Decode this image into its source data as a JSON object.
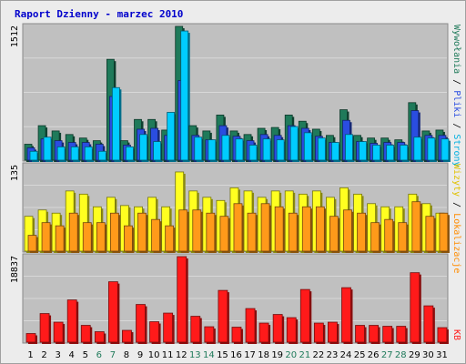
{
  "title": "Raport Dzienny -  marzec 2010",
  "colors": {
    "background": "#ececec",
    "panel": "#c0c0c0",
    "grid": "#d8d8d8",
    "hits": "#1f7a5a",
    "files": "#2a4de0",
    "pages": "#00ccff",
    "visits": "#ffff20",
    "sites": "#ff9a1a",
    "kbytes": "#ff1a1a",
    "day_normal": "#000000",
    "day_weekend": "#1f7a5a"
  },
  "right_labels": {
    "top": [
      {
        "text": "Wywołania",
        "color": "#1f7a5a"
      },
      {
        "text": " / ",
        "color": "#000000"
      },
      {
        "text": "Pliki",
        "color": "#2a4de0"
      },
      {
        "text": " / ",
        "color": "#000000"
      },
      {
        "text": "Strony",
        "color": "#00b0e0"
      }
    ],
    "middle": [
      {
        "text": "Wizyty",
        "color": "#e0c000"
      },
      {
        "text": " / ",
        "color": "#000000"
      },
      {
        "text": "Lokalizacje",
        "color": "#ff8c00"
      }
    ],
    "bottom": [
      {
        "text": "KB",
        "color": "#ff1a1a"
      }
    ]
  },
  "chart_data": {
    "type": "bar",
    "categories": [
      "1",
      "2",
      "3",
      "4",
      "5",
      "6",
      "7",
      "8",
      "9",
      "10",
      "11",
      "12",
      "13",
      "14",
      "15",
      "16",
      "17",
      "18",
      "19",
      "20",
      "21",
      "22",
      "23",
      "24",
      "25",
      "26",
      "27",
      "28",
      "29",
      "30",
      "31"
    ],
    "weekend_days": [
      "6",
      "7",
      "13",
      "14",
      "20",
      "21",
      "27",
      "28"
    ],
    "panels": [
      {
        "name": "hits-files-pages",
        "ymax_label": "1512",
        "ylim": [
          0,
          1512
        ],
        "series": [
          {
            "name": "Wywołania",
            "color_key": "hits",
            "values": [
              180,
              390,
              330,
              290,
              250,
              220,
              1140,
              220,
              460,
              460,
              340,
              1512,
              390,
              330,
              510,
              330,
              290,
              360,
              370,
              510,
              440,
              350,
              280,
              570,
              280,
              250,
              250,
              230,
              650,
              330,
              340
            ]
          },
          {
            "name": "Pliki",
            "color_key": "files",
            "values": [
              140,
              240,
              220,
              200,
              200,
              180,
              720,
              170,
              350,
              360,
              280,
              900,
              280,
              230,
              390,
              270,
              220,
              290,
              280,
              390,
              360,
              270,
              200,
              450,
              210,
              190,
              200,
              200,
              560,
              280,
              280
            ]
          },
          {
            "name": "Strony",
            "color_key": "pages",
            "values": [
              100,
              260,
              150,
              150,
              150,
              100,
              820,
              150,
              290,
              210,
              540,
              1460,
              260,
              230,
              280,
              240,
              170,
              240,
              230,
              380,
              310,
              250,
              200,
              290,
              210,
              170,
              170,
              170,
              260,
              250,
              240
            ]
          }
        ]
      },
      {
        "name": "visits-sites",
        "ymax_label": "135",
        "ylim": [
          0,
          135
        ],
        "series": [
          {
            "name": "Wizyty",
            "color_key": "visits",
            "values": [
              55,
              65,
              60,
              95,
              90,
              70,
              85,
              72,
              70,
              85,
              70,
              125,
              95,
              85,
              80,
              100,
              95,
              85,
              95,
              95,
              90,
              95,
              85,
              100,
              90,
              75,
              70,
              70,
              90,
              75,
              60
            ]
          },
          {
            "name": "Lokalizacje",
            "color_key": "sites",
            "values": [
              25,
              45,
              40,
              60,
              45,
              45,
              60,
              40,
              60,
              50,
              40,
              65,
              65,
              60,
              55,
              75,
              60,
              75,
              70,
              60,
              70,
              70,
              55,
              65,
              60,
              45,
              50,
              45,
              78,
              55,
              60
            ]
          }
        ]
      },
      {
        "name": "kbytes",
        "ymax_label": "18837",
        "ylim": [
          0,
          18837
        ],
        "series": [
          {
            "name": "KB",
            "color_key": "kbytes",
            "values": [
              1900,
              6300,
              4400,
              9300,
              3700,
              2300,
              13300,
              2600,
              8300,
              4500,
              6400,
              18837,
              5700,
              3400,
              11400,
              3300,
              7400,
              4200,
              6100,
              5400,
              11600,
              4200,
              4400,
              12000,
              3700,
              3700,
              3500,
              3500,
              15300,
              8000,
              3200
            ]
          }
        ]
      }
    ]
  }
}
